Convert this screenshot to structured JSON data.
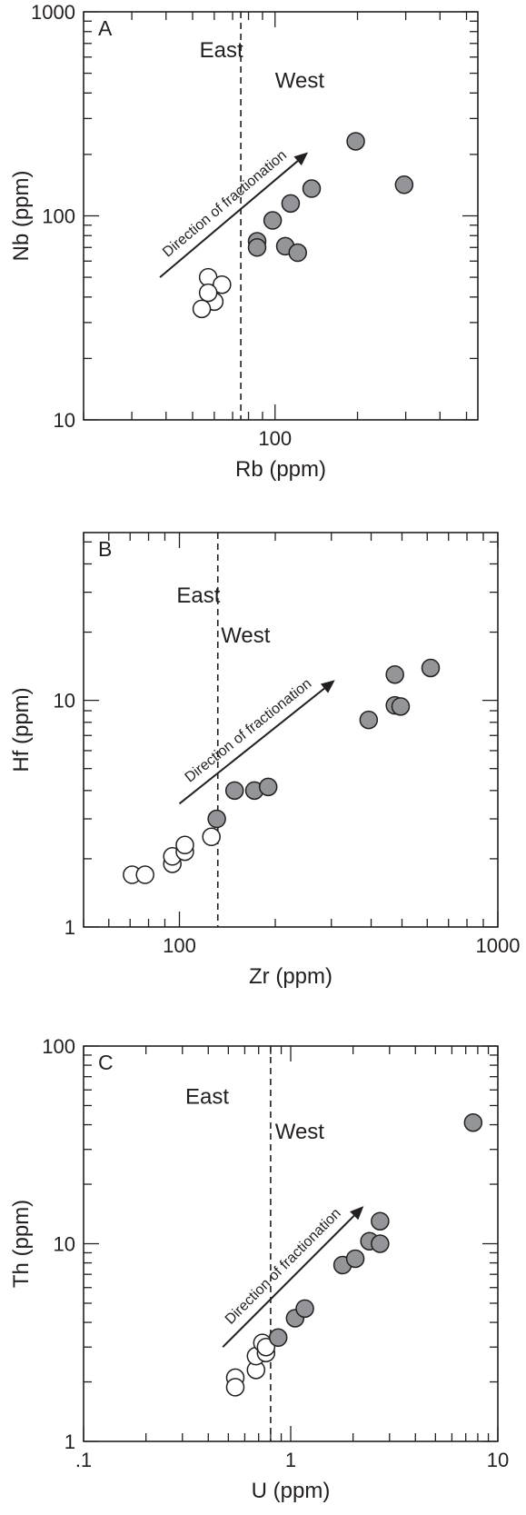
{
  "chart_data": [
    {
      "type": "scatter",
      "panel_label": "A",
      "xlabel": "Rb (ppm)",
      "ylabel": "Nb (ppm)",
      "xscale": "log",
      "yscale": "log",
      "xlim": [
        20,
        550
      ],
      "ylim": [
        10,
        1000
      ],
      "x_tick_labels": [
        {
          "value": 100,
          "label": "100"
        }
      ],
      "y_tick_labels": [
        {
          "value": 10,
          "label": "10"
        },
        {
          "value": 100,
          "label": "100"
        },
        {
          "value": 1000,
          "label": "1000"
        }
      ],
      "divider_x": 75,
      "region_labels": [
        {
          "text": "East",
          "x": 53,
          "y": 600
        },
        {
          "text": "West",
          "x": 100,
          "y": 425
        }
      ],
      "arrow": {
        "label": "Direction of fractionation",
        "from": [
          38,
          50
        ],
        "to": [
          132,
          205
        ]
      },
      "series": [
        {
          "group": "east",
          "fill": "#ffffff",
          "points": [
            [
              57,
              50
            ],
            [
              60,
              38
            ],
            [
              64,
              46
            ],
            [
              57,
              42
            ],
            [
              54,
              35
            ]
          ]
        },
        {
          "group": "west",
          "fill": "#939598",
          "points": [
            [
              86,
              75
            ],
            [
              86,
              70
            ],
            [
              98,
              95
            ],
            [
              109,
              71
            ],
            [
              114,
              115
            ],
            [
              121,
              66
            ],
            [
              136,
              136
            ],
            [
              197,
              232
            ],
            [
              296,
              142
            ]
          ]
        }
      ]
    },
    {
      "type": "scatter",
      "panel_label": "B",
      "xlabel": "Zr (ppm)",
      "ylabel": "Hf (ppm)",
      "xscale": "log",
      "yscale": "log",
      "xlim": [
        50,
        1000
      ],
      "ylim": [
        1,
        55
      ],
      "x_tick_labels": [
        {
          "value": 100,
          "label": "100"
        },
        {
          "value": 1000,
          "label": "1000"
        }
      ],
      "y_tick_labels": [
        {
          "value": 1,
          "label": "1"
        },
        {
          "value": 10,
          "label": "10"
        }
      ],
      "divider_x": 132,
      "region_labels": [
        {
          "text": "East",
          "x": 98,
          "y": 27
        },
        {
          "text": "West",
          "x": 135,
          "y": 18
        }
      ],
      "arrow": {
        "label": "Direction of fractionation",
        "from": [
          100,
          3.5
        ],
        "to": [
          308,
          12.3
        ]
      },
      "series": [
        {
          "group": "east",
          "fill": "#ffffff",
          "points": [
            [
              71,
              1.7
            ],
            [
              78,
              1.7
            ],
            [
              95,
              1.9
            ],
            [
              95,
              2.05
            ],
            [
              104,
              2.15
            ],
            [
              104,
              2.3
            ],
            [
              126,
              2.5
            ]
          ]
        },
        {
          "group": "west",
          "fill": "#939598",
          "points": [
            [
              131,
              3.0
            ],
            [
              149,
              4.0
            ],
            [
              172,
              4.0
            ],
            [
              190,
              4.15
            ],
            [
              393,
              8.2
            ],
            [
              475,
              13.0
            ],
            [
              475,
              9.5
            ],
            [
              495,
              9.4
            ],
            [
              615,
              13.9
            ]
          ]
        }
      ]
    },
    {
      "type": "scatter",
      "panel_label": "C",
      "xlabel": "U (ppm)",
      "ylabel": "Th (ppm)",
      "xscale": "log",
      "yscale": "log",
      "xlim": [
        0.1,
        10
      ],
      "ylim": [
        1,
        100
      ],
      "x_tick_labels": [
        {
          "value": 0.1,
          "label": ".1"
        },
        {
          "value": 1,
          "label": "1"
        },
        {
          "value": 10,
          "label": "10"
        }
      ],
      "y_tick_labels": [
        {
          "value": 1,
          "label": "1"
        },
        {
          "value": 10,
          "label": "10"
        },
        {
          "value": 100,
          "label": "100"
        }
      ],
      "divider_x": 0.8,
      "region_labels": [
        {
          "text": "East",
          "x": 0.31,
          "y": 51
        },
        {
          "text": "West",
          "x": 0.84,
          "y": 34
        }
      ],
      "arrow": {
        "label": "Direction of fractionation",
        "from": [
          0.47,
          3.0
        ],
        "to": [
          2.25,
          15.5
        ]
      },
      "series": [
        {
          "group": "east",
          "fill": "#ffffff",
          "points": [
            [
              0.54,
              2.1
            ],
            [
              0.54,
              1.88
            ],
            [
              0.68,
              2.3
            ],
            [
              0.68,
              2.7
            ],
            [
              0.73,
              3.15
            ],
            [
              0.76,
              2.8
            ],
            [
              0.76,
              3.0
            ]
          ]
        },
        {
          "group": "west",
          "fill": "#939598",
          "points": [
            [
              0.87,
              3.35
            ],
            [
              1.05,
              4.2
            ],
            [
              1.17,
              4.7
            ],
            [
              1.78,
              7.8
            ],
            [
              2.05,
              8.4
            ],
            [
              2.4,
              10.3
            ],
            [
              2.7,
              10.0
            ],
            [
              2.7,
              13.0
            ],
            [
              7.6,
              41
            ]
          ]
        }
      ]
    }
  ]
}
